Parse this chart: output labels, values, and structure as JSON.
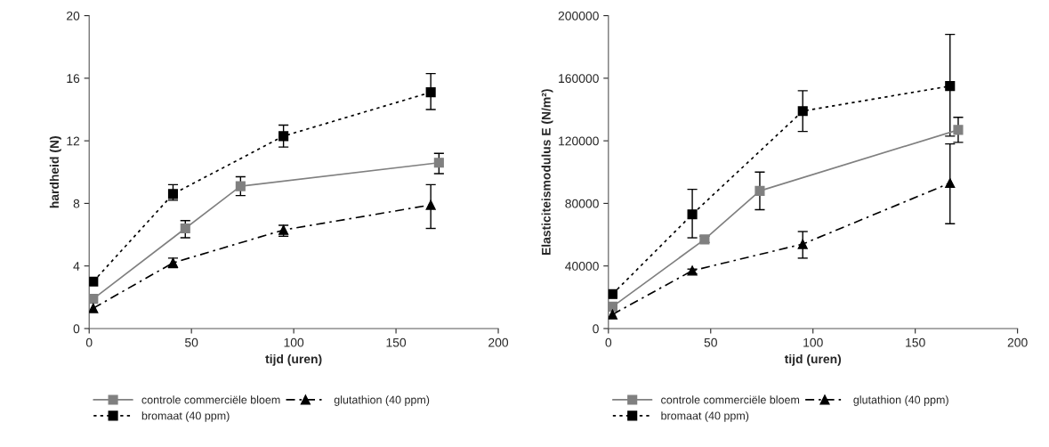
{
  "chart_data": [
    {
      "type": "line",
      "xlabel": "tijd (uren)",
      "ylabel": "hardheid (N)",
      "xlim": [
        0,
        200
      ],
      "xticks": [
        0,
        50,
        100,
        150,
        200
      ],
      "ylim": [
        0,
        20
      ],
      "yticks": [
        0,
        4,
        8,
        12,
        16,
        20
      ],
      "grid": false,
      "legend": "bottom",
      "series": [
        {
          "name": "controle commerciële bloem",
          "color": "#808080",
          "marker": "square",
          "line_style": "solid",
          "x": [
            2,
            47,
            74,
            171
          ],
          "values": [
            1.9,
            6.4,
            9.1,
            10.6
          ],
          "errors": [
            null,
            [
              5.8,
              6.9
            ],
            [
              8.5,
              9.7
            ],
            [
              9.9,
              11.2
            ]
          ]
        },
        {
          "name": "glutathion (40 ppm)",
          "color": "#000000",
          "marker": "triangle",
          "line_style": "dashed",
          "x": [
            2,
            41,
            95,
            167
          ],
          "values": [
            1.3,
            4.2,
            6.3,
            7.9
          ],
          "errors": [
            null,
            [
              3.9,
              4.5
            ],
            [
              5.9,
              6.6
            ],
            [
              6.4,
              9.2
            ]
          ]
        },
        {
          "name": "bromaat (40 ppm)",
          "color": "#000000",
          "marker": "square",
          "line_style": "dotted",
          "x": [
            2,
            41,
            95,
            167
          ],
          "values": [
            3.0,
            8.6,
            12.3,
            15.1
          ],
          "errors": [
            null,
            [
              8.2,
              9.2
            ],
            [
              11.6,
              13.0
            ],
            [
              14.0,
              16.3
            ]
          ]
        }
      ]
    },
    {
      "type": "line",
      "xlabel": "tijd (uren)",
      "ylabel": "Elasticiteismodulus E (N/m²)",
      "xlim": [
        0,
        200
      ],
      "xticks": [
        0,
        50,
        100,
        150,
        200
      ],
      "ylim": [
        0,
        200000
      ],
      "yticks": [
        0,
        40000,
        80000,
        120000,
        160000,
        200000
      ],
      "grid": false,
      "legend": "bottom",
      "series": [
        {
          "name": "controle commerciële bloem",
          "color": "#808080",
          "marker": "square",
          "line_style": "solid",
          "x": [
            2,
            47,
            74,
            171
          ],
          "values": [
            14000,
            57000,
            88000,
            127000
          ],
          "errors": [
            null,
            [
              55000,
              59000
            ],
            [
              76000,
              100000
            ],
            [
              119000,
              135000
            ]
          ]
        },
        {
          "name": "glutathion (40 ppm)",
          "color": "#000000",
          "marker": "triangle",
          "line_style": "dashed",
          "x": [
            2,
            41,
            95,
            167
          ],
          "values": [
            9000,
            37000,
            54000,
            93000
          ],
          "errors": [
            null,
            [
              35000,
              38000
            ],
            [
              45000,
              62000
            ],
            [
              67000,
              118000
            ]
          ]
        },
        {
          "name": "bromaat (40 ppm)",
          "color": "#000000",
          "marker": "square",
          "line_style": "dotted",
          "x": [
            2,
            41,
            95,
            167
          ],
          "values": [
            22000,
            73000,
            139000,
            155000
          ],
          "errors": [
            null,
            [
              58000,
              89000
            ],
            [
              126000,
              152000
            ],
            [
              123000,
              188000
            ]
          ]
        }
      ]
    }
  ]
}
